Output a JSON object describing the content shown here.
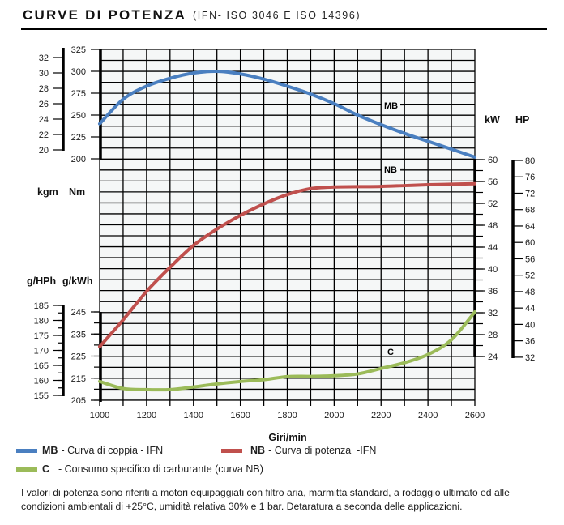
{
  "header": {
    "title": "CURVE DI POTENZA",
    "subtitle": "(IFN- ISO 3046 E ISO 14396)"
  },
  "chart_data": {
    "type": "line",
    "title": "CURVE DI POTENZA",
    "xlabel": "Giri/min",
    "xlim": [
      1000,
      2600
    ],
    "x_ticks": [
      1000,
      1200,
      1400,
      1600,
      1800,
      2000,
      2200,
      2400,
      2600
    ],
    "grid": true,
    "axes": {
      "torque": {
        "units": [
          "kgm",
          "Nm"
        ],
        "nm_ticks": [
          200,
          225,
          250,
          275,
          300,
          325
        ],
        "kgm_ticks": [
          20,
          22,
          24,
          26,
          28,
          30,
          32
        ],
        "nm_range": [
          200,
          325
        ]
      },
      "power": {
        "units": [
          "kW",
          "HP"
        ],
        "kw_ticks": [
          24,
          28,
          32,
          36,
          40,
          44,
          48,
          52,
          56,
          60
        ],
        "hp_ticks": [
          32,
          36,
          40,
          44,
          48,
          52,
          56,
          60,
          64,
          68,
          72,
          76,
          80
        ],
        "kw_range": [
          24,
          60
        ]
      },
      "consumption": {
        "units": [
          "g/HPh",
          "g/kWh"
        ],
        "gkwh_ticks": [
          205,
          215,
          225,
          235,
          245
        ],
        "ghph_ticks": [
          155,
          160,
          165,
          170,
          175,
          180,
          185
        ],
        "gkwh_range": [
          205,
          245
        ]
      }
    },
    "x": [
      1000,
      1100,
      1200,
      1300,
      1400,
      1500,
      1600,
      1700,
      1800,
      1900,
      2000,
      2100,
      2200,
      2300,
      2400,
      2500,
      2600
    ],
    "series": [
      {
        "name": "MB",
        "axis": "Nm",
        "color": "#4a7fc0",
        "values": [
          240,
          268,
          283,
          292,
          298,
          300,
          297,
          291,
          283,
          274,
          263,
          250,
          239,
          229,
          220,
          211,
          202
        ]
      },
      {
        "name": "NB",
        "axis": "kW",
        "color": "#c0504d",
        "values": [
          25.8,
          30.7,
          35.9,
          40.3,
          44.3,
          47.3,
          49.8,
          51.9,
          53.6,
          54.7,
          55.0,
          55.05,
          55.1,
          55.25,
          55.4,
          55.5,
          55.6
        ]
      },
      {
        "name": "C",
        "axis": "g/kWh",
        "color": "#9bbb59",
        "values": [
          213.5,
          210.3,
          209.8,
          209.8,
          211,
          212.4,
          213.5,
          214.3,
          215.7,
          215.8,
          216.1,
          216.9,
          219.4,
          222,
          225.7,
          232.4,
          245
        ]
      }
    ]
  },
  "legend": [
    {
      "code": "MB",
      "text": "- Curva di coppia - IFN",
      "color": "#4a7fc0"
    },
    {
      "code": "NB",
      "text": "- Curva di potenza  -IFN",
      "color": "#c0504d"
    },
    {
      "code": "C",
      "text": "  - Consumo specifico di carburante (curva NB)",
      "color": "#9bbb59"
    }
  ],
  "footer": "I valori di potenza sono riferiti a motori equipaggiati con filtro aria, marmitta standard, a rodaggio ultimato ed alle condizioni ambientali di +25°C, umidità relativa 30% e 1 bar. Detaratura a seconda delle applicazioni."
}
